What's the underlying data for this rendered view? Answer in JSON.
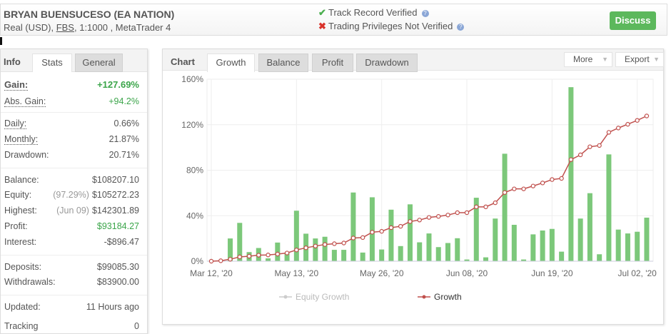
{
  "header": {
    "title": "BRYAN BUENSUCESO (EA NATION)",
    "account_prefix": "Real (USD), ",
    "broker": "FBS",
    "account_suffix": ", 1:1000 , MetaTrader 4",
    "track_record": "Track Record Verified",
    "trading_privileges": "Trading Privileges Not Verified",
    "discuss": "Discuss",
    "check_color": "#4caf50",
    "cross_color": "#d9332b"
  },
  "info": {
    "label": "Info",
    "tabs": [
      "Stats",
      "General"
    ],
    "rows": [
      {
        "k": "Gain:",
        "v": "+127.69%"
      },
      {
        "k": "Abs. Gain:",
        "v": "+94.2%"
      },
      {
        "k": "Daily:",
        "v": "0.66%"
      },
      {
        "k": "Monthly:",
        "v": "21.87%"
      },
      {
        "k": "Drawdown:",
        "v": "20.71%"
      },
      {
        "k": "Balance:",
        "v": "$108207.10"
      },
      {
        "k": "Equity:",
        "sub": "(97.29%)",
        "v": "$105272.23"
      },
      {
        "k": "Highest:",
        "sub": "(Jun 09)",
        "v": "$142301.89"
      },
      {
        "k": "Profit:",
        "v": "$93184.27"
      },
      {
        "k": "Interest:",
        "v": "-$896.47"
      },
      {
        "k": "Deposits:",
        "v": "$99085.30"
      },
      {
        "k": "Withdrawals:",
        "v": "$83900.00"
      },
      {
        "k": "Updated:",
        "v": "11 Hours ago"
      },
      {
        "k": "Tracking",
        "v": "0"
      }
    ]
  },
  "chart": {
    "label": "Chart",
    "tabs": [
      "Growth",
      "Balance",
      "Profit",
      "Drawdown"
    ],
    "more": "More",
    "export": "Export"
  },
  "chart_data": {
    "type": "bar+line",
    "ylim": [
      0,
      160
    ],
    "y_ticks": [
      "0%",
      "40%",
      "80%",
      "120%",
      "160%"
    ],
    "grid": true,
    "x_ticks": [
      {
        "label": "Mar 12, '20",
        "index": 0
      },
      {
        "label": "May 13, '20",
        "index": 9
      },
      {
        "label": "May 26, '20",
        "index": 18
      },
      {
        "label": "Jun 08, '20",
        "index": 27
      },
      {
        "label": "Jun 19, '20",
        "index": 36
      },
      {
        "label": "Jul 02, '20",
        "index": 45
      }
    ],
    "bars": {
      "color": "#7cc87a",
      "values": [
        0,
        1,
        20,
        33.7,
        8,
        11.6,
        2.5,
        16.4,
        7,
        44.4,
        24.2,
        20,
        21.5,
        10,
        10,
        60.4,
        7.6,
        56.2,
        10.3,
        45.3,
        13.3,
        50,
        16.6,
        24.4,
        12.4,
        16,
        20.2,
        1.5,
        55.8,
        3.4,
        37.5,
        94.5,
        32,
        1.5,
        23.6,
        27,
        28.4,
        8.4,
        153,
        37.5,
        59.8,
        6.1,
        93.9,
        27.8,
        24.4,
        25.9,
        38.3
      ]
    },
    "series": [
      {
        "name": "Equity Growth",
        "color": "#cccccc",
        "hidden": true,
        "values": []
      },
      {
        "name": "Growth",
        "color": "#c0504d",
        "values": [
          0,
          0.4,
          1.7,
          3.8,
          4.4,
          5.3,
          5.5,
          6.3,
          7.2,
          9.9,
          11.8,
          13.3,
          14.7,
          15.4,
          16,
          20.4,
          20.8,
          25.5,
          26.3,
          29.5,
          30.7,
          34.9,
          36.2,
          38.5,
          39.4,
          40.6,
          42.7,
          42.7,
          47.8,
          47.8,
          51.4,
          60.4,
          63.6,
          63.6,
          66.1,
          68.8,
          71.8,
          72.8,
          89.3,
          93.5,
          100.6,
          101.7,
          113.3,
          117.1,
          120.4,
          123.8,
          127.69
        ]
      }
    ],
    "legend": "bottom-center"
  }
}
